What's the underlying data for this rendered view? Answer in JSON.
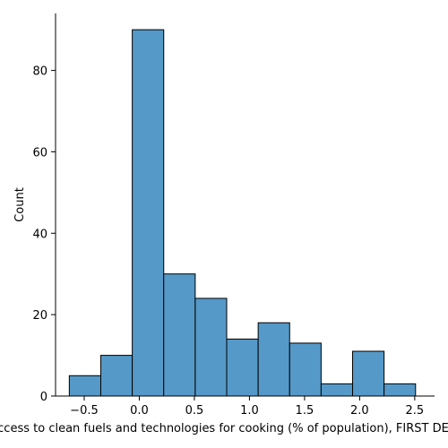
{
  "chart_data": {
    "type": "bar",
    "xlabel": "Access to clean fuels and technologies for cooking (% of population), FIRST DERIVATIVE",
    "ylabel": "Count",
    "bin_edges": [
      -0.6352,
      -0.3495,
      -0.0638,
      0.2219,
      0.5076,
      0.7933,
      1.079,
      1.3647,
      1.6504,
      1.9361,
      2.2218,
      2.5075
    ],
    "values": [
      5,
      10,
      90,
      30,
      24,
      14,
      18,
      13,
      3,
      11,
      3
    ],
    "xlim": [
      -0.76,
      2.68
    ],
    "ylim": [
      0,
      94
    ],
    "xticks": [
      -0.5,
      0.0,
      0.5,
      1.0,
      1.5,
      2.0,
      2.5
    ],
    "xtick_labels": [
      "−0.5",
      "0.0",
      "0.5",
      "1.0",
      "1.5",
      "2.0",
      "2.5"
    ],
    "yticks": [
      0,
      20,
      40,
      60,
      80
    ],
    "ytick_labels": [
      "0",
      "20",
      "40",
      "60",
      "80"
    ],
    "bar_color": "#5599c8",
    "edge_color": "#000000",
    "grid": false
  }
}
